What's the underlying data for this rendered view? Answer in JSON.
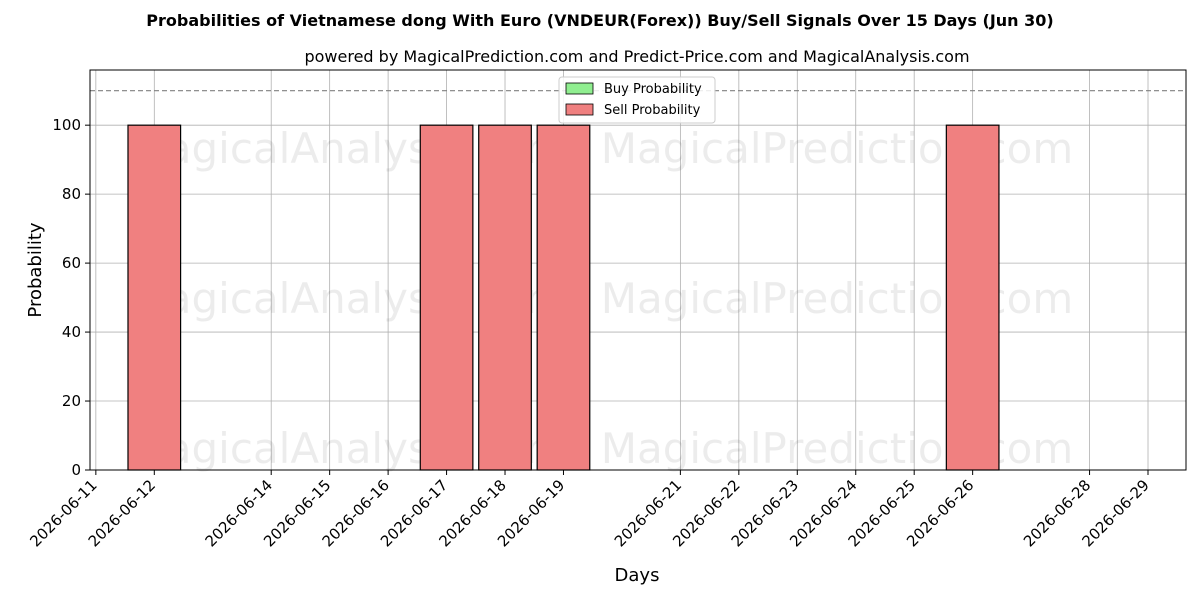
{
  "chart_data": {
    "type": "bar",
    "title": "Probabilities of Vietnamese dong With Euro (VNDEUR(Forex)) Buy/Sell Signals Over 15 Days (Jun 30)",
    "subtitle": "powered by MagicalPrediction.com and Predict-Price.com and MagicalAnalysis.com",
    "xlabel": "Days",
    "ylabel": "Probability",
    "ylim": [
      0,
      116
    ],
    "yticks": [
      0,
      20,
      40,
      60,
      80,
      100
    ],
    "xlim": [
      "2026-06-11",
      "2026-06-29"
    ],
    "categories": [
      "2026-06-11",
      "2026-06-12",
      "2026-06-14",
      "2026-06-15",
      "2026-06-16",
      "2026-06-17",
      "2026-06-18",
      "2026-06-19",
      "2026-06-21",
      "2026-06-22",
      "2026-06-23",
      "2026-06-24",
      "2026-06-25",
      "2026-06-26",
      "2026-06-28",
      "2026-06-29"
    ],
    "threshold_line": 110,
    "grid": true,
    "legend_position": "top-center",
    "series": [
      {
        "name": "Buy Probability",
        "color": "#90ee90",
        "points": []
      },
      {
        "name": "Sell Probability",
        "color": "#f08080",
        "points": [
          {
            "x": "2026-06-12",
            "y": 100
          },
          {
            "x": "2026-06-17",
            "y": 100
          },
          {
            "x": "2026-06-18",
            "y": 100
          },
          {
            "x": "2026-06-19",
            "y": 100
          },
          {
            "x": "2026-06-26",
            "y": 100
          }
        ]
      }
    ],
    "watermarks": [
      "MagicalAnalysis.com",
      "MagicalPrediction.com"
    ]
  }
}
